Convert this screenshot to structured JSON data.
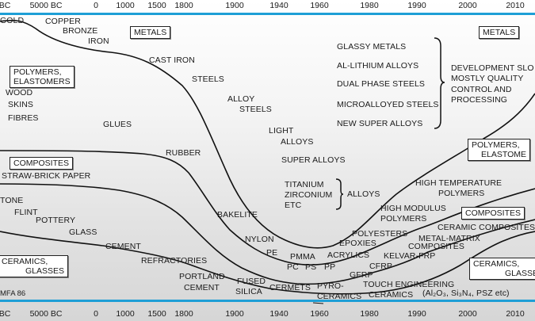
{
  "axis": {
    "ticks": [
      "BC",
      "5000 BC",
      "0",
      "1000",
      "1500",
      "1800",
      "1900",
      "1940",
      "1960",
      "1980",
      "1990",
      "2000",
      "2010"
    ],
    "color": "#1e9fd6"
  },
  "boxes": {
    "metals_left": "METALS",
    "metals_right": "METALS",
    "polymers_left_1": "POLYMERS,",
    "polymers_left_2": "ELASTOMERS",
    "composites_left": "COMPOSITES",
    "ceramics_left_1": "CERAMICS,",
    "ceramics_left_2": "GLASSES",
    "polymers_right_1": "POLYMERS,",
    "polymers_right_2": "ELASTOME",
    "composites_right": "COMPOSITES",
    "ceramics_right_1": "CERAMICS,",
    "ceramics_right_2": "GLASSE"
  },
  "metals": {
    "gold": "GOLD",
    "copper": "COPPER",
    "bronze": "BRONZE",
    "iron": "IRON",
    "cast_iron": "CAST IRON",
    "steels": "STEELS",
    "alloy_steels_1": "ALLOY",
    "alloy_steels_2": "STEELS",
    "light_alloys_1": "LIGHT",
    "light_alloys_2": "ALLOYS",
    "super_alloys": "SUPER ALLOYS",
    "titanium": "TITANIUM",
    "zirconium": "ZIRCONIUM",
    "etc": "ETC",
    "alloys": "ALLOYS"
  },
  "modern_metals": [
    "GLASSY METALS",
    "AL-LITHIUM ALLOYS",
    "DUAL PHASE STEELS",
    "MICROALLOYED STEELS",
    "NEW SUPER ALLOYS"
  ],
  "development_note": [
    "DEVELOPMENT SLO",
    "MOSTLY QUALITY",
    "CONTROL AND",
    "PROCESSING"
  ],
  "polymers": {
    "wood": "WOOD",
    "skins": "SKINS",
    "fibres": "FIBRES",
    "glues": "GLUES",
    "rubber": "RUBBER",
    "bakelite": "BAKELITE",
    "nylon": "NYLON",
    "pe": "PE",
    "pmma": "PMMA",
    "pc": "PC",
    "ps": "PS",
    "pp": "PP",
    "acrylics": "ACRYLICS",
    "epoxies": "EPOXIES",
    "polyesters": "POLYESTERS",
    "high_modulus_1": "HIGH MODULUS",
    "high_modulus_2": "POLYMERS",
    "high_temp_1": "HIGH TEMPERATURE",
    "high_temp_2": "POLYMERS"
  },
  "composites": {
    "straw_brick": "STRAW-BRICK PAPER",
    "gfrp": "GFRP",
    "cfrp": "CFRP",
    "kelvar": "KELVAR-FRP",
    "metal_matrix_1": "METAL-MATRIX",
    "metal_matrix_2": "COMPOSITES",
    "ceramic_composites": "CERAMIC COMPOSITES"
  },
  "ceramics": {
    "stone": "TONE",
    "flint": "FLINT",
    "pottery": "POTTERY",
    "glass": "GLASS",
    "cement": "CEMENT",
    "refractories": "REFRACTORIES",
    "portland_1": "PORTLAND",
    "portland_2": "CEMENT",
    "fused_1": "FUSED",
    "fused_2": "SILICA",
    "cermets": "CERMETS",
    "pyro_1": "PYRO-",
    "pyro_2": "CERAMICS",
    "touch_1": "TOUCH ENGINEERING",
    "touch_2": "CERAMICS",
    "formula": "(Al₂O₃, Si₃N₄, PSZ etc)"
  },
  "footer": "MFA 86"
}
